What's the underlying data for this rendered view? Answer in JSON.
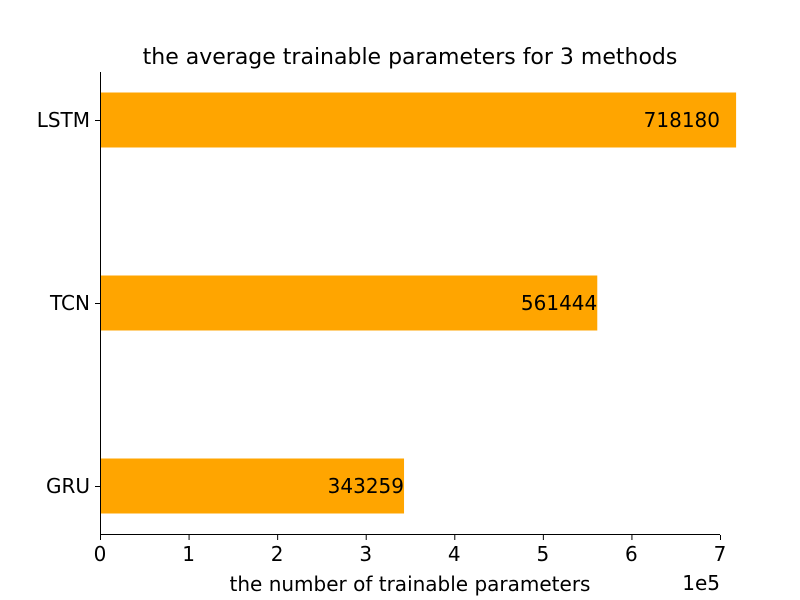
{
  "chart_data": {
    "type": "bar",
    "orientation": "horizontal",
    "title": "the average trainable parameters for 3 methods",
    "xlabel": "the number of trainable parameters",
    "ylabel": "",
    "x_offset_label": "1e5",
    "categories": [
      "GRU",
      "TCN",
      "LSTM"
    ],
    "values": [
      343259,
      561444,
      718180
    ],
    "data_labels": [
      "343259",
      "561444",
      "718180"
    ],
    "xlim": [
      0,
      700000
    ],
    "xticks": [
      0,
      100000,
      200000,
      300000,
      400000,
      500000,
      600000,
      700000
    ],
    "xtick_labels": [
      "0",
      "1",
      "2",
      "3",
      "4",
      "5",
      "6",
      "7"
    ],
    "bar_color": "#FFA500",
    "grid": false
  }
}
